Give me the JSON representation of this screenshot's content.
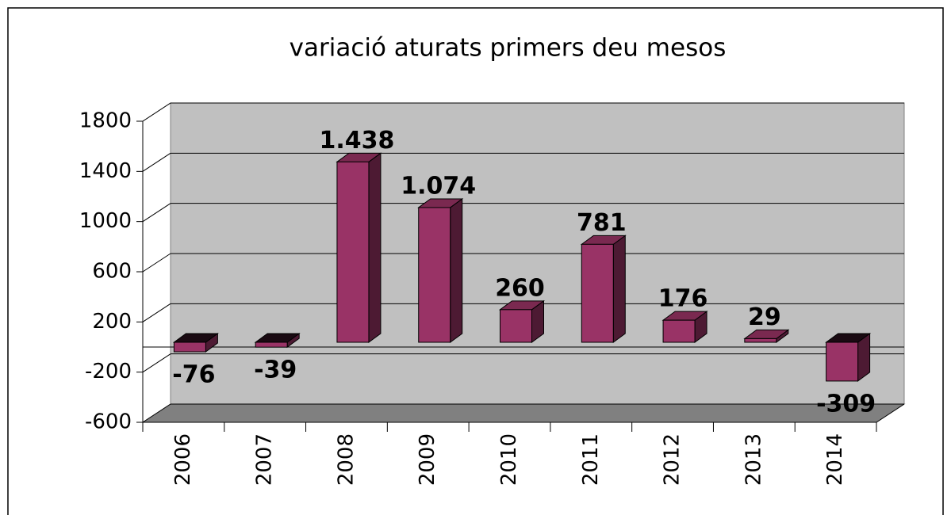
{
  "chart_data": {
    "type": "bar3d",
    "title": "variació aturats primers deu mesos",
    "categories": [
      "2006",
      "2007",
      "2008",
      "2009",
      "2010",
      "2011",
      "2012",
      "2013",
      "2014"
    ],
    "values": [
      -76,
      -39,
      1438,
      1074,
      260,
      781,
      176,
      29,
      -309
    ],
    "value_labels": [
      "-76",
      "-39",
      "1.438",
      "1.074",
      "260",
      "781",
      "176",
      "29",
      "-309"
    ],
    "color": "#993366",
    "ylim": [
      -600,
      1800
    ],
    "yticks": [
      1800,
      1400,
      1000,
      600,
      200,
      -200,
      -600
    ],
    "grid": true
  }
}
